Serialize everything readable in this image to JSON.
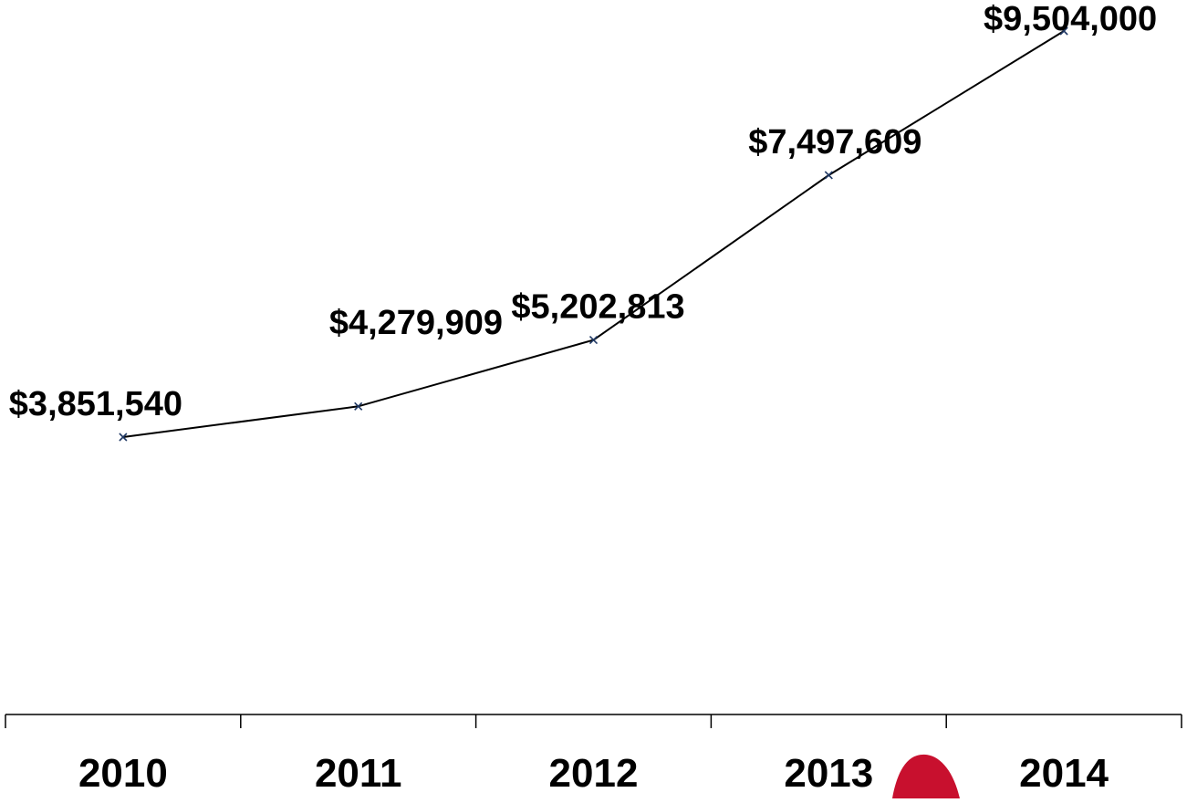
{
  "chart_data": {
    "type": "line",
    "categories": [
      "2010",
      "2011",
      "2012",
      "2013",
      "2014"
    ],
    "series": [
      {
        "values": [
          3851540,
          4279909,
          5202813,
          7497609,
          9504000
        ],
        "labels": [
          "$3,851,540",
          "$4,279,909",
          "$5,202,813",
          "$7,497,609",
          "$9,504,000"
        ]
      }
    ],
    "title": "",
    "xlabel": "",
    "ylabel": "",
    "grid": false,
    "legend": "none"
  },
  "colors": {
    "line": "#000000",
    "marker": "#1f3864",
    "axis": "#000000",
    "decoration": "#c8102e"
  }
}
